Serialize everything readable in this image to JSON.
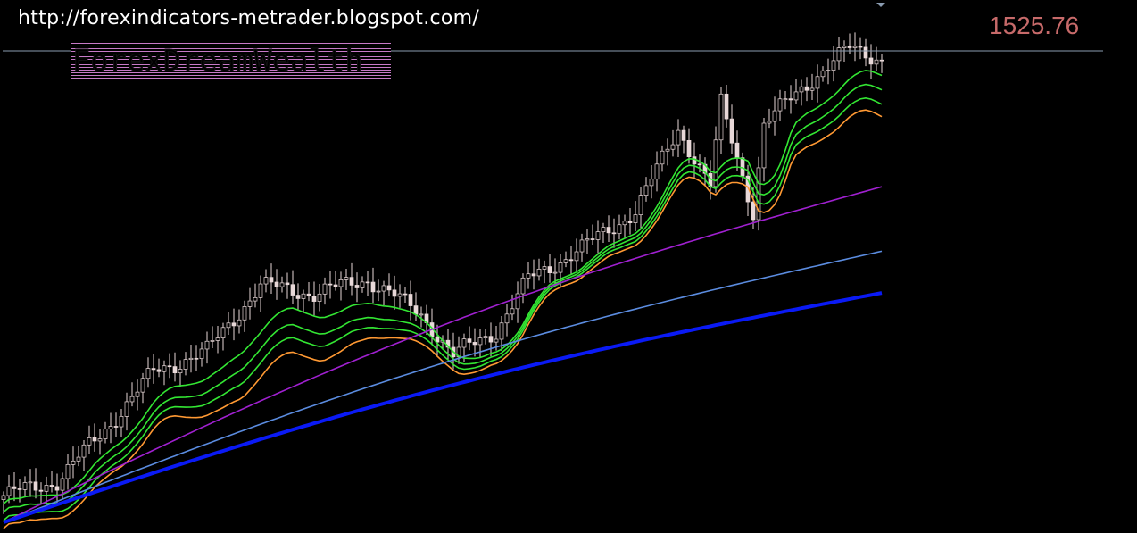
{
  "header": {
    "url_text": "http://forexindicators-metrader.blogspot.com/",
    "logo_text": "ForexDreamWealth",
    "current_price": "1525.76"
  },
  "colors": {
    "background": "#000000",
    "candle": "#e8d8d8",
    "ma_green": "#33e633",
    "ma_orange": "#ff9933",
    "ma_purple": "#a020d0",
    "ma_lightblue": "#5b8ce0",
    "ma_blue": "#0a1af5",
    "price_line": "#8a9bb0",
    "price_label": "#c76a6a"
  },
  "chart_data": {
    "type": "line",
    "title": "",
    "xlabel": "",
    "ylabel": "",
    "ylim": [
      1297,
      1547
    ],
    "current_price": 1525.76,
    "bar_count": 165,
    "key_close_points": [
      [
        0,
        1310
      ],
      [
        10,
        1317
      ],
      [
        20,
        1345
      ],
      [
        28,
        1370
      ],
      [
        38,
        1380
      ],
      [
        48,
        1412
      ],
      [
        58,
        1408
      ],
      [
        68,
        1415
      ],
      [
        78,
        1398
      ],
      [
        84,
        1378
      ],
      [
        92,
        1390
      ],
      [
        98,
        1415
      ],
      [
        108,
        1430
      ],
      [
        118,
        1448
      ],
      [
        126,
        1488
      ],
      [
        132,
        1460
      ],
      [
        134,
        1500
      ],
      [
        140,
        1448
      ],
      [
        142,
        1490
      ],
      [
        150,
        1510
      ],
      [
        158,
        1527
      ],
      [
        164,
        1522
      ]
    ],
    "series": [
      {
        "offset": [
          -4,
          -4,
          -7,
          -12,
          -11,
          -9,
          -6,
          -4,
          -4,
          -6,
          -8,
          -10
        ],
        "color": "ma_green"
      },
      {
        "offset": [
          -8,
          -8,
          -12,
          -20,
          -19,
          -15,
          -8,
          -5,
          -6,
          -10,
          -14,
          -17
        ],
        "color": "ma_green"
      },
      {
        "offset": [
          -12,
          -12,
          -16,
          -27,
          -25,
          -19,
          -10,
          -6,
          -8,
          -14,
          -19,
          -24
        ],
        "color": "ma_green"
      },
      {
        "offset": [
          -16,
          -15,
          -20,
          -34,
          -32,
          -23,
          -12,
          -8,
          -10,
          -17,
          -24,
          -30
        ],
        "color": "ma_orange"
      },
      {
        "start": 1297,
        "end": 1474,
        "color": "ma_purple"
      },
      {
        "start": 1297,
        "end": 1440,
        "color": "ma_lightblue"
      },
      {
        "start": 1297,
        "end": 1418,
        "color": "ma_blue"
      }
    ]
  }
}
